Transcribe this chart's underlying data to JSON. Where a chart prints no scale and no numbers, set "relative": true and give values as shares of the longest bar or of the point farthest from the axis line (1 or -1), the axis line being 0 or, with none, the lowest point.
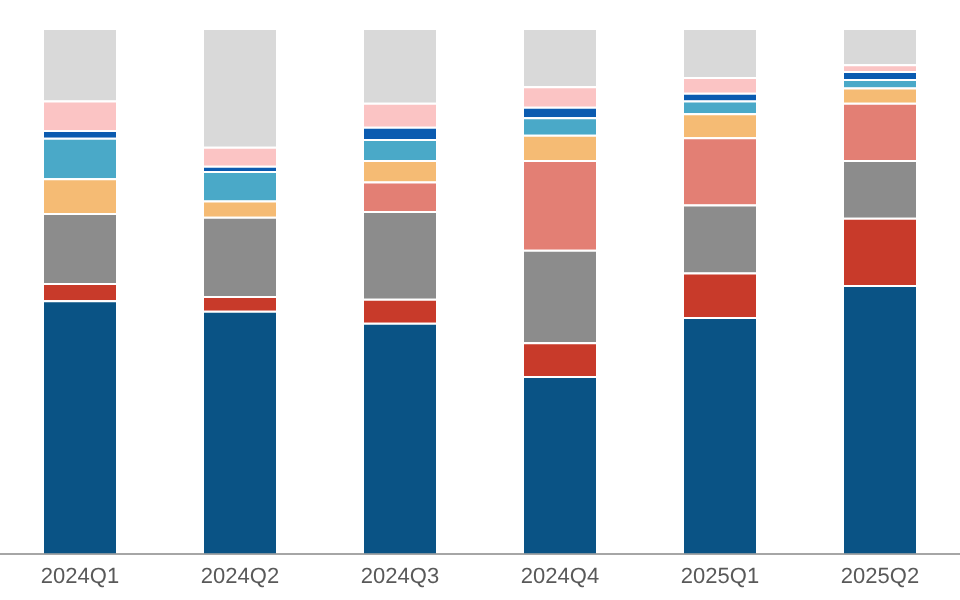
{
  "chart_data": {
    "type": "bar",
    "stacked": true,
    "relative": true,
    "legend": false,
    "grid": false,
    "categories": [
      "2024Q1",
      "2024Q2",
      "2024Q3",
      "2024Q4",
      "2025Q1",
      "2025Q2"
    ],
    "series": [
      {
        "color": "#0a5385",
        "values": [
          0.482,
          0.462,
          0.439,
          0.338,
          0.45,
          0.511
        ]
      },
      {
        "color": "#c83a2a",
        "values": [
          0.033,
          0.028,
          0.046,
          0.064,
          0.085,
          0.128
        ]
      },
      {
        "color": "#8c8c8c",
        "values": [
          0.133,
          0.151,
          0.167,
          0.176,
          0.129,
          0.11
        ]
      },
      {
        "color": "#e37f74",
        "values": [
          0,
          0,
          0.056,
          0.171,
          0.128,
          0.109
        ]
      },
      {
        "color": "#f5bb74",
        "values": [
          0.066,
          0.031,
          0.041,
          0.048,
          0.046,
          0.029
        ]
      },
      {
        "color": "#4aa9c8",
        "values": [
          0.077,
          0.056,
          0.04,
          0.033,
          0.024,
          0.016
        ]
      },
      {
        "color": "#0b5bb0",
        "values": [
          0.015,
          0.01,
          0.023,
          0.02,
          0.015,
          0.015
        ]
      },
      {
        "color": "#fbc4c4",
        "values": [
          0.056,
          0.036,
          0.046,
          0.039,
          0.03,
          0.013
        ]
      },
      {
        "color": "#d9d9d9",
        "values": [
          0.138,
          0.226,
          0.142,
          0.111,
          0.093,
          0.069
        ]
      }
    ]
  }
}
